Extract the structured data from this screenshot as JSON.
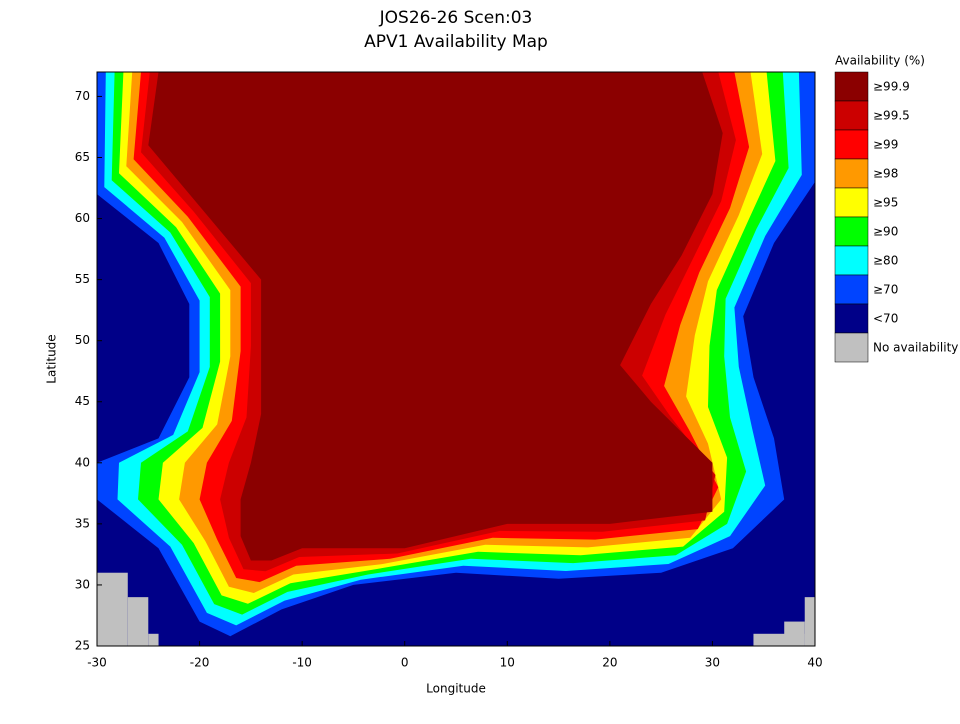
{
  "map": {
    "title": "JOS26-26 Scen:03",
    "subtitle": "APV1 Availability Map",
    "xlabel": "Longitude",
    "ylabel": "Latitude",
    "xlim": [
      -30,
      40
    ],
    "ylim": [
      25,
      72
    ],
    "xticks": [
      -30,
      -20,
      -10,
      0,
      10,
      20,
      30,
      40
    ],
    "yticks": [
      25,
      30,
      35,
      40,
      45,
      50,
      55,
      60,
      65,
      70
    ],
    "legend": {
      "title": "Availability (%)",
      "entries": [
        {
          "label": "≥99.9",
          "color": "#8b0000"
        },
        {
          "label": "≥99.5",
          "color": "#cc0000"
        },
        {
          "label": "≥99",
          "color": "#ff0000"
        },
        {
          "label": "≥98",
          "color": "#ff9900"
        },
        {
          "label": "≥95",
          "color": "#ffff00"
        },
        {
          "label": "≥90",
          "color": "#00ff00"
        },
        {
          "label": "≥80",
          "color": "#00ffff"
        },
        {
          "label": "≥70",
          "color": "#0044ff"
        },
        {
          "label": "<70",
          "color": "#000088"
        },
        {
          "label": "No availability",
          "color": "#c0c0c0"
        }
      ]
    }
  }
}
